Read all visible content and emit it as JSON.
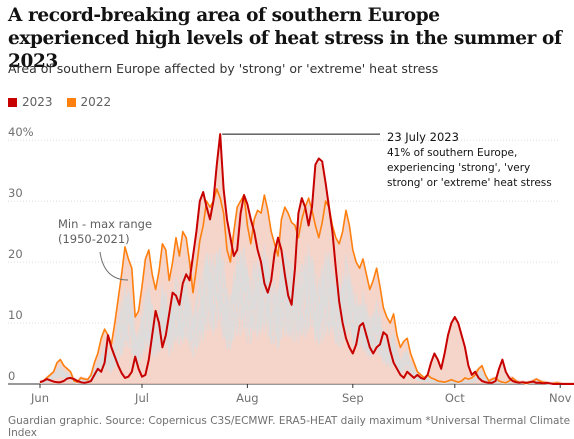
{
  "header": {
    "title": "A record-breaking area of southern Europe experienced high levels of heat stress in the summer of 2023",
    "subtitle": "Area of southern Europe affected by 'strong' or 'extreme' heat stress"
  },
  "footer": {
    "source": "Guardian graphic. Source: Copernicus C3S/ECMWF. ERA5-HEAT daily maximum *Universal Thermal Climate Index"
  },
  "colors": {
    "y2023": "#c70000",
    "y2022": "#ff7f0f",
    "range": "#f2c5b8",
    "historic": "#dcdcdc",
    "grid": "#dcdcdc",
    "axis": "#333333"
  },
  "chart_data": {
    "type": "line",
    "xlabel": "",
    "ylabel": "",
    "x_ticks": [
      "Jun",
      "Jul",
      "Aug",
      "Sep",
      "Oct",
      "Nov"
    ],
    "y_ticks": [
      "40%",
      "30",
      "20",
      "10",
      "0"
    ],
    "ylim": [
      0,
      42
    ],
    "grid": true,
    "legend": {
      "position": "top-left",
      "entries": [
        "2023",
        "2022"
      ]
    },
    "range_label": "Min - max range\n(1950-2021)",
    "annotation": {
      "date": "23 July 2023",
      "text": "41% of southern Europe,\nexperiencing 'strong', 'very\nstrong' or 'extreme' heat stress",
      "day": 53,
      "value": 41
    },
    "series": [
      {
        "name": "2023",
        "x_start_day": 0,
        "values": [
          0.3,
          0.5,
          0.8,
          0.6,
          0.4,
          0.3,
          0.3,
          0.5,
          0.9,
          1.0,
          0.8,
          0.5,
          0.3,
          0.2,
          0.3,
          0.5,
          1.5,
          2.5,
          2.0,
          3.5,
          8.0,
          6.0,
          4.5,
          3.0,
          1.8,
          1.0,
          1.2,
          2.0,
          4.5,
          2.5,
          1.2,
          1.5,
          4.0,
          8.0,
          12.0,
          10.0,
          6.0,
          8.0,
          11.5,
          15.0,
          14.5,
          13.0,
          16.5,
          18.0,
          17.0,
          21.0,
          25.0,
          30.0,
          31.5,
          29.0,
          27.0,
          30.0,
          36.0,
          41.0,
          32.0,
          27.0,
          24.0,
          21.0,
          22.0,
          28.0,
          31.0,
          29.5,
          27.0,
          25.0,
          22.0,
          20.0,
          16.5,
          15.0,
          17.0,
          21.5,
          24.0,
          22.0,
          18.0,
          14.5,
          13.0,
          19.0,
          28.0,
          30.5,
          29.0,
          26.0,
          29.0,
          36.0,
          37.0,
          36.5,
          33.0,
          29.0,
          25.0,
          19.0,
          13.5,
          10.0,
          7.5,
          6.0,
          5.0,
          6.5,
          9.5,
          10.0,
          8.0,
          6.0,
          5.0,
          6.0,
          6.5,
          8.5,
          8.0,
          5.5,
          3.5,
          2.5,
          1.5,
          1.0,
          2.0,
          1.5,
          1.0,
          1.5,
          1.0,
          0.8,
          1.5,
          3.5,
          5.0,
          4.0,
          2.5,
          5.0,
          8.0,
          10.0,
          11.0,
          10.0,
          8.0,
          6.0,
          3.0,
          1.5,
          2.0,
          1.0,
          0.5,
          0.3,
          0.2,
          0.2,
          0.5,
          2.5,
          4.0,
          2.0,
          1.0,
          0.5,
          0.3,
          0.2,
          0.3,
          0.2,
          0.3,
          0.4,
          0.2,
          0.2,
          0.1,
          0.2,
          0.1,
          0.0,
          0.0,
          0.0,
          0.0,
          0.0,
          0.0,
          0.0,
          0.0,
          0.0,
          0.0,
          0.5,
          0.3,
          0.0,
          0.0,
          0.0,
          0.0,
          0.0,
          0.0,
          0.0
        ]
      },
      {
        "name": "2022",
        "x_start_day": 0,
        "values": [
          0.2,
          0.5,
          1.0,
          1.5,
          2.0,
          3.5,
          4.0,
          3.0,
          2.5,
          2.0,
          0.5,
          0.3,
          1.0,
          0.8,
          0.7,
          1.5,
          3.5,
          5.0,
          7.5,
          9.0,
          8.0,
          6.5,
          10.0,
          14.0,
          18.0,
          22.5,
          20.5,
          19.0,
          11.0,
          12.0,
          16.0,
          20.5,
          22.0,
          18.0,
          15.5,
          18.5,
          23.0,
          22.0,
          17.0,
          20.0,
          24.0,
          21.0,
          25.0,
          24.0,
          20.0,
          15.0,
          19.0,
          23.5,
          26.0,
          30.0,
          29.0,
          30.0,
          32.0,
          30.5,
          28.0,
          22.0,
          20.0,
          25.0,
          29.0,
          30.0,
          31.0,
          26.0,
          23.0,
          27.0,
          28.5,
          28.0,
          31.0,
          28.5,
          25.0,
          23.0,
          21.0,
          27.0,
          29.0,
          28.0,
          26.5,
          26.0,
          24.0,
          27.0,
          29.0,
          30.5,
          28.5,
          26.0,
          24.0,
          26.5,
          30.0,
          29.0,
          26.0,
          24.0,
          23.0,
          25.0,
          28.5,
          26.0,
          22.0,
          20.0,
          19.0,
          20.5,
          18.0,
          15.5,
          17.0,
          19.0,
          16.0,
          12.5,
          11.0,
          10.0,
          11.5,
          8.0,
          6.0,
          7.0,
          7.5,
          5.0,
          3.5,
          2.0,
          1.5,
          1.0,
          1.5,
          1.0,
          0.8,
          0.5,
          0.4,
          0.3,
          0.5,
          0.7,
          0.5,
          0.3,
          0.5,
          1.0,
          0.8,
          1.0,
          1.5,
          2.5,
          3.0,
          1.5,
          0.5,
          0.8,
          1.0,
          0.5,
          0.3,
          0.2,
          0.5,
          1.0,
          0.5,
          0.3,
          0.2,
          0.1,
          0.2,
          0.5,
          0.8,
          0.5,
          0.3,
          0.2,
          0.1,
          0.1,
          0.2,
          0.1,
          0.0,
          0.0,
          0.0,
          0.0,
          0.0,
          0.0,
          0.0,
          0.0,
          0.0,
          0.0,
          0.0,
          0.0,
          0.0,
          0.0,
          0.0,
          0.0,
          0.0
        ]
      }
    ]
  }
}
